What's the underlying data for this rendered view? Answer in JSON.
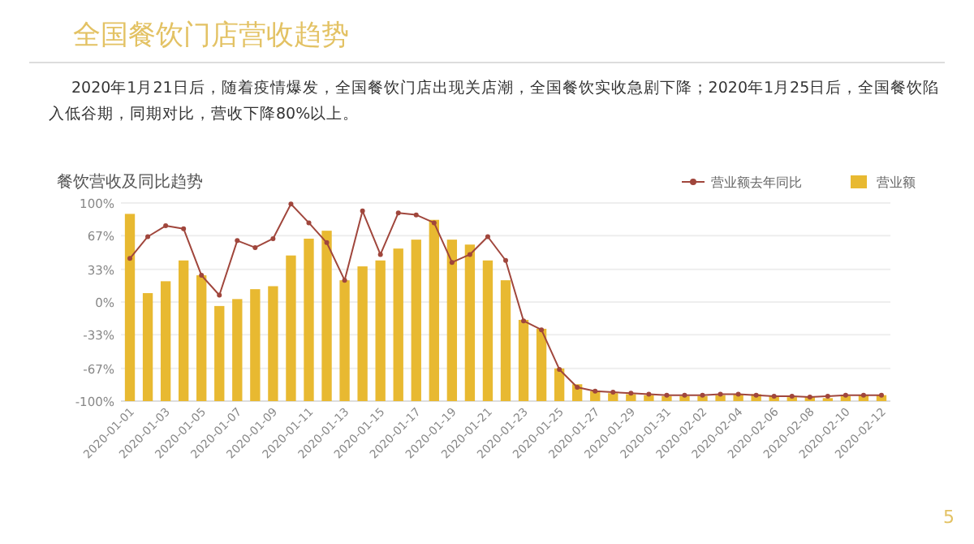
{
  "chart_data": {
    "type": "bar",
    "title": "全国餐饮门店营收趋势",
    "subtitle": "2020年1月21日后，随着疫情爆发，全国餐饮门店出现关店潮，全国餐饮实收急剧下降；2020年1月25日后，全国餐饮陷入低谷期，同期对比，营收下降80%以上。",
    "annotations": [
      "餐饮营收及同比趋势",
      "5"
    ],
    "categories": [
      "2020-01-01",
      null,
      "2020-01-03",
      null,
      "2020-01-05",
      null,
      "2020-01-07",
      null,
      "2020-01-09",
      null,
      "2020-01-11",
      null,
      "2020-01-13",
      null,
      "2020-01-15",
      null,
      "2020-01-17",
      null,
      "2020-01-19",
      null,
      "2020-01-21",
      null,
      "2020-01-23",
      null,
      "2020-01-25",
      null,
      "2020-01-27",
      null,
      "2020-01-29",
      null,
      "2020-01-31",
      null,
      "2020-02-02",
      null,
      "2020-02-04",
      null,
      "2020-02-06",
      null,
      "2020-02-08",
      null,
      "2020-02-10",
      null,
      "2020-02-12"
    ],
    "series": [
      {
        "name": "营业额去年同比",
        "type": "line",
        "color": "#a0463c",
        "marker": "circle",
        "values": [
          44,
          66,
          77,
          74,
          27,
          7,
          62,
          55,
          64,
          99,
          80,
          60,
          22,
          92,
          48,
          90,
          88,
          80,
          40,
          48,
          66,
          42,
          -19,
          -28,
          -68,
          -86,
          -90,
          -91,
          -92,
          -93,
          -94,
          -94,
          -94,
          -93,
          -93,
          -94,
          -95,
          -95,
          -96,
          -95,
          -94,
          -94,
          -94
        ]
      },
      {
        "name": "营业额",
        "color": "#e8b931",
        "base": [
          -100,
          -100,
          -100,
          -100,
          -100,
          -100,
          -100,
          -100,
          -100,
          -100,
          -100,
          -100,
          -100,
          -100,
          -100,
          -100,
          -100,
          -100,
          -100,
          -100,
          -100,
          -100,
          -100,
          -100,
          -100,
          -100,
          -100,
          -100,
          -100,
          -100,
          -100,
          -100,
          -100,
          -100,
          -100,
          -100,
          -100,
          -100,
          -100,
          -100,
          -100,
          -100,
          -100
        ],
        "values": [
          189,
          109,
          121,
          142,
          127,
          96,
          103,
          113,
          116,
          147,
          164,
          172,
          122,
          136,
          142,
          154,
          163,
          183,
          163,
          158,
          142,
          122,
          82,
          73,
          33,
          17,
          10,
          8,
          7,
          6,
          5,
          5,
          5,
          6,
          7,
          7,
          5,
          4,
          4,
          3,
          5,
          6,
          6
        ]
      }
    ],
    "ylim": [
      -100,
      100
    ],
    "yticks": [
      {
        "value": 100,
        "label": "100%"
      },
      {
        "value": 67,
        "label": "67%"
      },
      {
        "value": 33,
        "label": "33%"
      },
      {
        "value": 0,
        "label": "0%"
      },
      {
        "value": -33,
        "label": "-33%"
      },
      {
        "value": -67,
        "label": "-67%"
      },
      {
        "value": -100,
        "label": "-100%"
      }
    ],
    "grid": "y",
    "legend": "top right"
  }
}
